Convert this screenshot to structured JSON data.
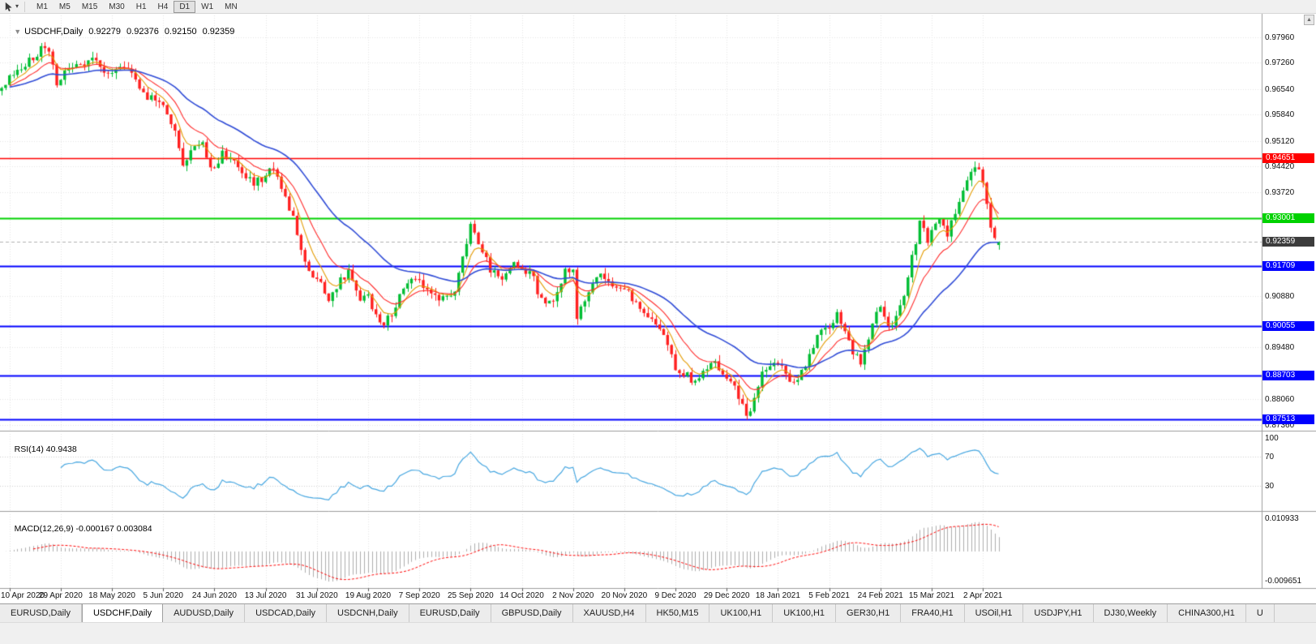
{
  "toolbar": {
    "timeframes": [
      {
        "label": "M1"
      },
      {
        "label": "M5"
      },
      {
        "label": "M15"
      },
      {
        "label": "M30"
      },
      {
        "label": "H1"
      },
      {
        "label": "H4"
      },
      {
        "label": "D1"
      },
      {
        "label": "W1"
      },
      {
        "label": "MN"
      }
    ],
    "active_timeframe": "D1"
  },
  "chart": {
    "symbol_label": "USDCHF,Daily",
    "ohlc": {
      "open": "0.92279",
      "high": "0.92376",
      "low": "0.92150",
      "close": "0.92359"
    }
  },
  "price_axis": {
    "visible_labels": [
      "0.97960",
      "0.97260",
      "0.96540",
      "0.95840",
      "0.95120",
      "0.94420",
      "0.93720",
      "0.90880",
      "0.89480",
      "0.88060",
      "0.87360"
    ]
  },
  "levels": [
    {
      "label": "0.94651",
      "value": 0.94651,
      "color": "#ff0000",
      "style": "solid",
      "name": "resistance-line"
    },
    {
      "label": "0.93001",
      "value": 0.93001,
      "color": "#00d200",
      "style": "solid",
      "name": "support-line"
    },
    {
      "label": "0.92359",
      "value": 0.92359,
      "color": "#3c3c3c",
      "style": "dashed",
      "name": "current-price"
    },
    {
      "label": "0.91709",
      "value": 0.91709,
      "color": "#0000ff",
      "style": "solid",
      "name": "support-line"
    },
    {
      "label": "0.90055",
      "value": 0.90055,
      "color": "#0000ff",
      "style": "solid",
      "name": "support-line"
    },
    {
      "label": "0.88703",
      "value": 0.88703,
      "color": "#0000ff",
      "style": "solid",
      "name": "support-line"
    },
    {
      "label": "0.87513",
      "value": 0.87513,
      "color": "#0000ff",
      "style": "solid",
      "name": "support-line"
    }
  ],
  "indicators": {
    "rsi": {
      "label": "RSI(14)",
      "value": "40.9438",
      "axis_labels": [
        "100",
        "70",
        "30"
      ],
      "line_color": "#46a6e0"
    },
    "macd": {
      "label": "MACD(12,26,9)",
      "value": "-0.000167",
      "signal_value": "0.003084",
      "axis_top": "0.010933",
      "axis_bottom": "-0.009651",
      "histogram_color": "#adadad",
      "signal_color": "#ff0000"
    }
  },
  "date_axis": {
    "labels": [
      "10 Apr 2020",
      "29 Apr 2020",
      "18 May 2020",
      "5 Jun 2020",
      "24 Jun 2020",
      "13 Jul 2020",
      "31 Jul 2020",
      "19 Aug 2020",
      "7 Sep 2020",
      "25 Sep 2020",
      "14 Oct 2020",
      "2 Nov 2020",
      "20 Nov 2020",
      "9 Dec 2020",
      "29 Dec 2020",
      "18 Jan 2021",
      "5 Feb 2021",
      "24 Feb 2021",
      "15 Mar 2021",
      "2 Apr 2021"
    ]
  },
  "tabs": {
    "items": [
      {
        "label": "EURUSD,Daily",
        "active": false
      },
      {
        "label": "USDCHF,Daily",
        "active": true
      },
      {
        "label": "AUDUSD,Daily",
        "active": false
      },
      {
        "label": "USDCAD,Daily",
        "active": false
      },
      {
        "label": "USDCNH,Daily",
        "active": false
      },
      {
        "label": "EURUSD,Daily",
        "active": false
      },
      {
        "label": "GBPUSD,Daily",
        "active": false
      },
      {
        "label": "XAUUSD,H4",
        "active": false
      },
      {
        "label": "HK50,M15",
        "active": false
      },
      {
        "label": "UK100,H1",
        "active": false
      },
      {
        "label": "UK100,H1",
        "active": false
      },
      {
        "label": "GER30,H1",
        "active": false
      },
      {
        "label": "FRA40,H1",
        "active": false
      },
      {
        "label": "USOil,H1",
        "active": false
      },
      {
        "label": "USDJPY,H1",
        "active": false
      },
      {
        "label": "DJ30,Weekly",
        "active": false
      },
      {
        "label": "CHINA300,H1",
        "active": false
      },
      {
        "label": "U",
        "active": false
      }
    ]
  },
  "chart_data": {
    "type": "candlestick",
    "symbol": "USDCHF",
    "timeframe": "Daily",
    "bars": 254,
    "bars_per_tick": 13,
    "first_tick_bar": 2,
    "price_range": [
      0.8725,
      0.9855
    ],
    "last_bar": {
      "open": 0.92279,
      "high": 0.92376,
      "low": 0.9215,
      "close": 0.92359
    },
    "up_color": "#00bd33",
    "down_color": "#ff1f1f",
    "close_anchors": [
      [
        0,
        0.9665
      ],
      [
        4,
        0.97
      ],
      [
        8,
        0.974
      ],
      [
        11,
        0.9775
      ],
      [
        13,
        0.972
      ],
      [
        14,
        0.9655
      ],
      [
        16,
        0.97
      ],
      [
        20,
        0.9715
      ],
      [
        24,
        0.9735
      ],
      [
        27,
        0.969
      ],
      [
        30,
        0.9725
      ],
      [
        33,
        0.97
      ],
      [
        36,
        0.964
      ],
      [
        41,
        0.961
      ],
      [
        44,
        0.9545
      ],
      [
        46,
        0.9455
      ],
      [
        49,
        0.95
      ],
      [
        51,
        0.9515
      ],
      [
        53,
        0.943
      ],
      [
        56,
        0.9475
      ],
      [
        59,
        0.9455
      ],
      [
        62,
        0.9415
      ],
      [
        64,
        0.94
      ],
      [
        67,
        0.9415
      ],
      [
        69,
        0.9445
      ],
      [
        71,
        0.939
      ],
      [
        74,
        0.93
      ],
      [
        76,
        0.922
      ],
      [
        78,
        0.9165
      ],
      [
        80,
        0.9135
      ],
      [
        83,
        0.908
      ],
      [
        86,
        0.9135
      ],
      [
        88,
        0.915
      ],
      [
        91,
        0.9065
      ],
      [
        93,
        0.9095
      ],
      [
        95,
        0.903
      ],
      [
        97,
        0.9008
      ],
      [
        100,
        0.906
      ],
      [
        103,
        0.913
      ],
      [
        106,
        0.913
      ],
      [
        109,
        0.9085
      ],
      [
        112,
        0.908
      ],
      [
        115,
        0.911
      ],
      [
        117,
        0.92
      ],
      [
        119,
        0.9275
      ],
      [
        121,
        0.924
      ],
      [
        124,
        0.916
      ],
      [
        127,
        0.914
      ],
      [
        130,
        0.918
      ],
      [
        132,
        0.9155
      ],
      [
        134,
        0.9165
      ],
      [
        136,
        0.91
      ],
      [
        138,
        0.9065
      ],
      [
        141,
        0.909
      ],
      [
        143,
        0.917
      ],
      [
        145,
        0.9155
      ],
      [
        146,
        0.903
      ],
      [
        148,
        0.908
      ],
      [
        150,
        0.912
      ],
      [
        152,
        0.9145
      ],
      [
        155,
        0.912
      ],
      [
        158,
        0.911
      ],
      [
        160,
        0.9085
      ],
      [
        163,
        0.905
      ],
      [
        166,
        0.901
      ],
      [
        169,
        0.896
      ],
      [
        171,
        0.889
      ],
      [
        174,
        0.887
      ],
      [
        176,
        0.885
      ],
      [
        178,
        0.888
      ],
      [
        181,
        0.8905
      ],
      [
        184,
        0.8865
      ],
      [
        186,
        0.8835
      ],
      [
        189,
        0.876
      ],
      [
        191,
        0.88
      ],
      [
        193,
        0.888
      ],
      [
        195,
        0.89
      ],
      [
        197,
        0.8905
      ],
      [
        199,
        0.887
      ],
      [
        201,
        0.885
      ],
      [
        204,
        0.89
      ],
      [
        206,
        0.8955
      ],
      [
        208,
        0.9
      ],
      [
        210,
        0.8995
      ],
      [
        212,
        0.9045
      ],
      [
        214,
        0.899
      ],
      [
        216,
        0.8935
      ],
      [
        218,
        0.8905
      ],
      [
        220,
        0.898
      ],
      [
        223,
        0.9065
      ],
      [
        225,
        0.9
      ],
      [
        227,
        0.903
      ],
      [
        229,
        0.909
      ],
      [
        231,
        0.919
      ],
      [
        233,
        0.929
      ],
      [
        235,
        0.924
      ],
      [
        236,
        0.927
      ],
      [
        238,
        0.93
      ],
      [
        240,
        0.926
      ],
      [
        242,
        0.932
      ],
      [
        244,
        0.938
      ],
      [
        246,
        0.943
      ],
      [
        248,
        0.944
      ],
      [
        249,
        0.939
      ],
      [
        250,
        0.933
      ],
      [
        251,
        0.928
      ],
      [
        252,
        0.924
      ],
      [
        253,
        0.92359
      ]
    ],
    "moving_averages": [
      {
        "period": 6,
        "color": "#e39b00"
      },
      {
        "period": 13,
        "color": "#ff2a2a"
      },
      {
        "period": 34,
        "color": "#2f4bd6"
      }
    ],
    "rsi": {
      "period": 14,
      "last": 40.9438
    },
    "macd": {
      "fast": 12,
      "slow": 26,
      "signal": 9,
      "range": [
        -0.0115,
        0.0125
      ]
    }
  }
}
